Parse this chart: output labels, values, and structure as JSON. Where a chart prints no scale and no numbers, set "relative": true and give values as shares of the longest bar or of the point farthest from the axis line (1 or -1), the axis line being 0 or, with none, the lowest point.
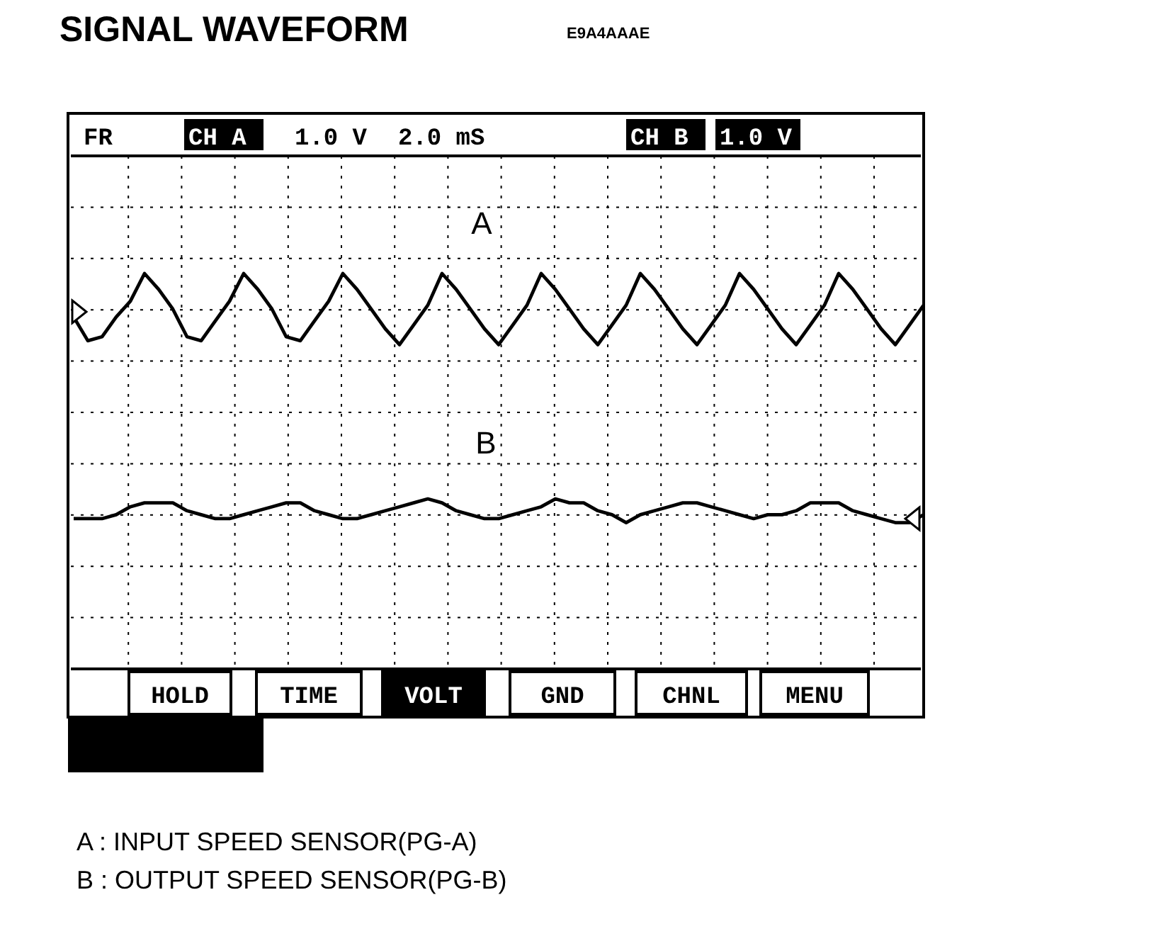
{
  "chart_data": {
    "type": "line",
    "title": "SIGNAL WAVEFORM",
    "subtitle": "E9A4AAAE",
    "relative": true,
    "grid": true,
    "line_style": "solid",
    "marker": "none",
    "categories": [
      null,
      null,
      null,
      null,
      null,
      null,
      null,
      null,
      null,
      null,
      null,
      null,
      null,
      null,
      null,
      null,
      null,
      null,
      null,
      null,
      null,
      null,
      null,
      null,
      null,
      null,
      null,
      null,
      null,
      null,
      null,
      null,
      null,
      null,
      null,
      null,
      null,
      null,
      null,
      null,
      null,
      null,
      null,
      null,
      null,
      null,
      null,
      null,
      null,
      null,
      null,
      null,
      null,
      null,
      null,
      null,
      null,
      null,
      null,
      null,
      null
    ],
    "series": [
      {
        "name": "A",
        "color": "#000000",
        "values": [
          0.89,
          0.83,
          0.84,
          0.89,
          0.93,
          1.0,
          0.96,
          0.91,
          0.84,
          0.83,
          0.88,
          0.93,
          1.0,
          0.96,
          0.91,
          0.84,
          0.83,
          0.88,
          0.93,
          1.0,
          0.96,
          0.91,
          0.86,
          0.82,
          0.87,
          0.92,
          1.0,
          0.96,
          0.91,
          0.86,
          0.82,
          0.87,
          0.92,
          1.0,
          0.96,
          0.91,
          0.86,
          0.82,
          0.87,
          0.92,
          1.0,
          0.96,
          0.91,
          0.86,
          0.82,
          0.87,
          0.92,
          1.0,
          0.96,
          0.91,
          0.86,
          0.82,
          0.87,
          0.92,
          1.0,
          0.96,
          0.91,
          0.86,
          0.82,
          0.87,
          0.92
        ]
      },
      {
        "name": "B",
        "color": "#000000",
        "values": [
          0.38,
          0.38,
          0.38,
          0.39,
          0.41,
          0.42,
          0.42,
          0.42,
          0.4,
          0.39,
          0.38,
          0.38,
          0.39,
          0.4,
          0.41,
          0.42,
          0.42,
          0.4,
          0.39,
          0.38,
          0.38,
          0.39,
          0.4,
          0.41,
          0.42,
          0.43,
          0.42,
          0.4,
          0.39,
          0.38,
          0.38,
          0.39,
          0.4,
          0.41,
          0.43,
          0.42,
          0.42,
          0.4,
          0.39,
          0.37,
          0.39,
          0.4,
          0.41,
          0.42,
          0.42,
          0.41,
          0.4,
          0.39,
          0.38,
          0.39,
          0.39,
          0.4,
          0.42,
          0.42,
          0.42,
          0.4,
          0.39,
          0.38,
          0.37,
          0.37,
          0.39
        ]
      }
    ],
    "annotations": [
      "FR",
      "CH A",
      "1.0 V",
      "2.0 mS",
      "CH B",
      "1.0 V",
      "HOLD",
      "TIME",
      "VOLT",
      "GND",
      "CHNL",
      "MENU",
      "A : INPUT SPEED SENSOR(PG-A)",
      "B : OUTPUT SPEED SENSOR(PG-B)"
    ]
  }
}
